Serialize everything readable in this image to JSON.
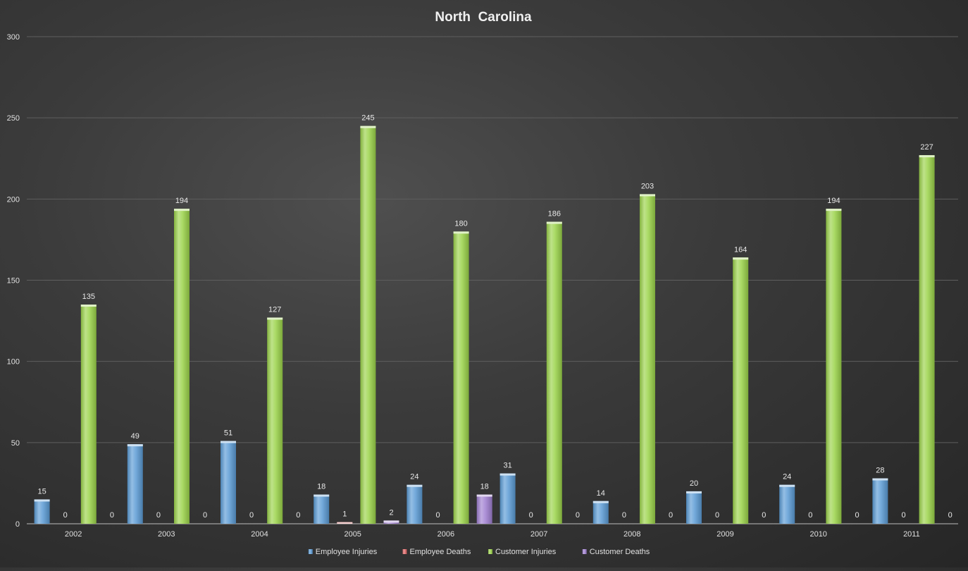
{
  "chart_data": {
    "type": "bar",
    "title": "North  Carolina",
    "xlabel": "",
    "ylabel": "",
    "ylim": [
      0,
      300
    ],
    "yticks": [
      0,
      50,
      100,
      150,
      200,
      250,
      300
    ],
    "grid": true,
    "legend_position": "bottom",
    "categories": [
      "2002",
      "2003",
      "2004",
      "2005",
      "2006",
      "2007",
      "2008",
      "2009",
      "2010",
      "2011"
    ],
    "series": [
      {
        "name": "Employee Injuries",
        "color": "#5b9bd5",
        "values": [
          15,
          49,
          51,
          18,
          24,
          31,
          14,
          20,
          24,
          28
        ]
      },
      {
        "name": "Employee Deaths",
        "color": "#e06666",
        "values": [
          0,
          0,
          0,
          1,
          0,
          0,
          0,
          0,
          0,
          0
        ]
      },
      {
        "name": "Customer Injuries",
        "color": "#9bd34a",
        "values": [
          135,
          194,
          127,
          245,
          180,
          186,
          203,
          164,
          194,
          227
        ]
      },
      {
        "name": "Customer Deaths",
        "color": "#a07fd1",
        "values": [
          0,
          0,
          0,
          2,
          18,
          0,
          0,
          0,
          0,
          0
        ]
      }
    ]
  }
}
